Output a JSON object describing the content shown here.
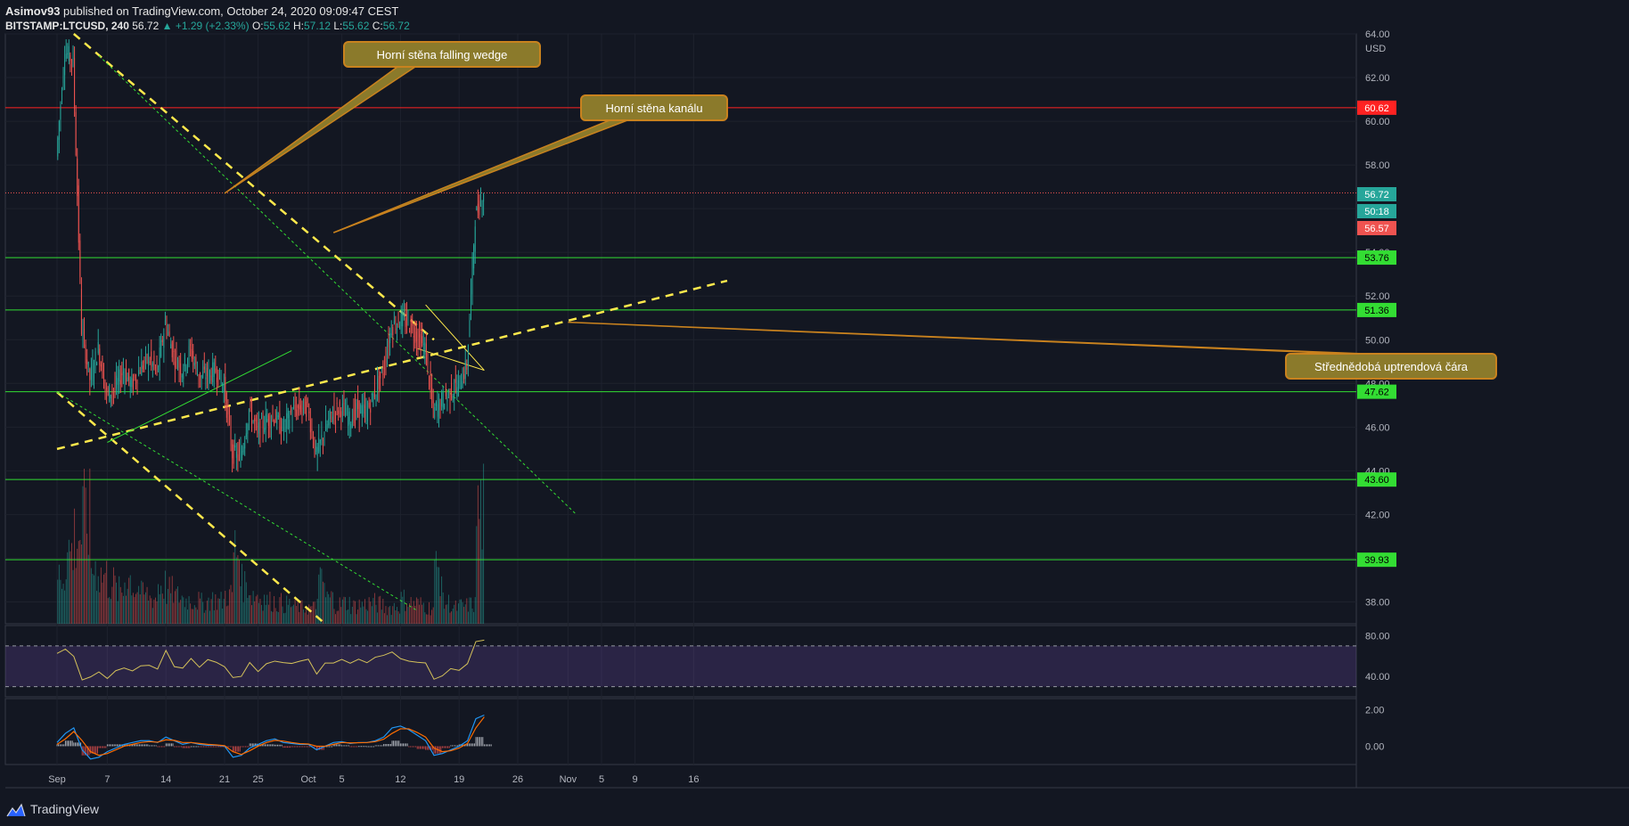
{
  "header": {
    "author": "Asimov93",
    "published": "published on TradingView.com, October 24, 2020 09:09:47 CEST",
    "symbol": "BITSTAMP:LTCUSD, 240",
    "last": "56.72",
    "change": "+1.29 (+2.33%)",
    "o_label": "O:",
    "o_value": "55.62",
    "h_label": "H:",
    "h_value": "57.12",
    "l_label": "L:",
    "l_value": "55.62",
    "c_label": "C:",
    "c_value": "56.72"
  },
  "footer": {
    "brand": "TradingView"
  },
  "colors": {
    "background": "#131722",
    "bull": "#26a69a",
    "bear": "#ef5350",
    "support": "#33dd33",
    "resistance": "#ff2222",
    "trendline": "#ffe94c",
    "rsi": "#d4c15a",
    "macd": "#2196f3",
    "signal": "#ff6d00",
    "annotation_fill": "#8b7a2b",
    "annotation_border": "#c9821e"
  },
  "chart_data": {
    "type": "candlestick",
    "symbol": "BITSTAMP:LTCUSD",
    "currency": "USD",
    "ylim": [
      37,
      64
    ],
    "y_ticks": [
      "64.00",
      "62.00",
      "60.00",
      "58.00",
      "56.00",
      "54.00",
      "52.00",
      "50.00",
      "48.00",
      "46.00",
      "44.00",
      "42.00",
      "40.00",
      "38.00"
    ],
    "x_ticks": [
      {
        "label": "Sep",
        "day": 1
      },
      {
        "label": "7",
        "day": 7
      },
      {
        "label": "14",
        "day": 14
      },
      {
        "label": "21",
        "day": 21
      },
      {
        "label": "25",
        "day": 25
      },
      {
        "label": "Oct",
        "day": 31
      },
      {
        "label": "5",
        "day": 35
      },
      {
        "label": "12",
        "day": 42
      },
      {
        "label": "19",
        "day": 49
      },
      {
        "label": "26",
        "day": 56
      },
      {
        "label": "Nov",
        "day": 62
      },
      {
        "label": "5",
        "day": 66
      },
      {
        "label": "9",
        "day": 70
      },
      {
        "label": "16",
        "day": 77
      }
    ],
    "price_series": [
      [
        0,
        58.4
      ],
      [
        1,
        63.2
      ],
      [
        2,
        62.8
      ],
      [
        3,
        50.5
      ],
      [
        4,
        48.2
      ],
      [
        5,
        49.6
      ],
      [
        6,
        47.5
      ],
      [
        7,
        47.8
      ],
      [
        8,
        48.6
      ],
      [
        9,
        47.9
      ],
      [
        10,
        48.7
      ],
      [
        11,
        49.2
      ],
      [
        12,
        48.5
      ],
      [
        13,
        50.8
      ],
      [
        14,
        49.3
      ],
      [
        15,
        48.6
      ],
      [
        16,
        49.6
      ],
      [
        17,
        48.3
      ],
      [
        18,
        48.4
      ],
      [
        19,
        48.6
      ],
      [
        20,
        47.9
      ],
      [
        21,
        44.8
      ],
      [
        22,
        44.6
      ],
      [
        23,
        46.8
      ],
      [
        24,
        45.8
      ],
      [
        25,
        46.3
      ],
      [
        26,
        46.5
      ],
      [
        27,
        45.9
      ],
      [
        28,
        46.6
      ],
      [
        29,
        46.9
      ],
      [
        30,
        46.9
      ],
      [
        31,
        44.7
      ],
      [
        32,
        45.8
      ],
      [
        33,
        46.7
      ],
      [
        34,
        46.9
      ],
      [
        35,
        46.3
      ],
      [
        36,
        46.9
      ],
      [
        37,
        46.6
      ],
      [
        38,
        47.6
      ],
      [
        39,
        48.6
      ],
      [
        40,
        50.6
      ],
      [
        41,
        50.9
      ],
      [
        42,
        50.8
      ],
      [
        43,
        50.2
      ],
      [
        44,
        49.6
      ],
      [
        45,
        46.7
      ],
      [
        46,
        47.2
      ],
      [
        47,
        47.6
      ],
      [
        48,
        47.9
      ],
      [
        49,
        48.8
      ],
      [
        50,
        55.6
      ],
      [
        51,
        56.72
      ]
    ],
    "volume_series": [
      [
        0,
        3.0
      ],
      [
        1,
        4.5
      ],
      [
        2,
        5.5
      ],
      [
        3,
        6.5
      ],
      [
        4,
        3.5
      ],
      [
        5,
        3.0
      ],
      [
        6,
        2.5
      ],
      [
        7,
        2.0
      ],
      [
        8,
        2.8
      ],
      [
        9,
        2.2
      ],
      [
        10,
        1.8
      ],
      [
        11,
        1.6
      ],
      [
        12,
        2.4
      ],
      [
        13,
        2.0
      ],
      [
        14,
        1.7
      ],
      [
        15,
        1.5
      ],
      [
        16,
        1.4
      ],
      [
        17,
        1.3
      ],
      [
        18,
        1.5
      ],
      [
        19,
        1.4
      ],
      [
        20,
        1.8
      ],
      [
        21,
        4.5
      ],
      [
        22,
        2.5
      ],
      [
        23,
        1.8
      ],
      [
        24,
        1.6
      ],
      [
        25,
        1.4
      ],
      [
        26,
        1.3
      ],
      [
        27,
        1.2
      ],
      [
        28,
        1.1
      ],
      [
        29,
        1.0
      ],
      [
        30,
        1.0
      ],
      [
        31,
        2.5
      ],
      [
        32,
        1.6
      ],
      [
        33,
        1.2
      ],
      [
        34,
        1.3
      ],
      [
        35,
        1.1
      ],
      [
        36,
        1.2
      ],
      [
        37,
        1.3
      ],
      [
        38,
        1.2
      ],
      [
        39,
        1.0
      ],
      [
        40,
        1.1
      ],
      [
        41,
        1.5
      ],
      [
        42,
        1.3
      ],
      [
        43,
        1.2
      ],
      [
        44,
        1.0
      ],
      [
        45,
        3.3
      ],
      [
        46,
        1.3
      ],
      [
        47,
        1.0
      ],
      [
        48,
        1.1
      ],
      [
        49,
        1.2
      ],
      [
        50,
        7.0
      ],
      [
        51,
        2.5
      ]
    ],
    "horizontal_levels": [
      {
        "value": 60.62,
        "label": "60.62",
        "kind": "resistance"
      },
      {
        "value": 53.76,
        "label": "53.76",
        "kind": "support"
      },
      {
        "value": 51.36,
        "label": "51.36",
        "kind": "support"
      },
      {
        "value": 47.62,
        "label": "47.62",
        "kind": "support"
      },
      {
        "value": 43.6,
        "label": "43.60",
        "kind": "support"
      },
      {
        "value": 39.93,
        "label": "39.93",
        "kind": "support"
      }
    ],
    "price_tags": [
      {
        "value": 56.72,
        "label": "56.72",
        "kind": "last"
      },
      {
        "value": 56.2,
        "label": "50:18",
        "kind": "countdown"
      },
      {
        "value": 55.4,
        "label": "56.57",
        "kind": "bear"
      }
    ],
    "trendlines": [
      {
        "from": [
          2,
          64.0
        ],
        "to": [
          45,
          50.0
        ],
        "style": "dashed",
        "color": "trendline"
      },
      {
        "from": [
          0,
          47.6
        ],
        "to": [
          32,
          37.0
        ],
        "style": "dashed",
        "color": "trendline"
      },
      {
        "from": [
          0,
          45.0
        ],
        "to": [
          80,
          52.7
        ],
        "style": "dashed",
        "color": "trendline"
      },
      {
        "from": [
          5,
          63.0
        ],
        "to": [
          62,
          42.0
        ],
        "style": "dotted",
        "color": "support"
      },
      {
        "from": [
          0,
          47.6
        ],
        "to": [
          43,
          37.6
        ],
        "style": "dotted",
        "color": "support"
      },
      {
        "from": [
          6,
          45.3
        ],
        "to": [
          28,
          49.5
        ],
        "style": "solid",
        "color": "support"
      },
      {
        "from": [
          44,
          51.6
        ],
        "to": [
          51,
          48.6
        ],
        "style": "solid",
        "color": "trendline"
      },
      {
        "from": [
          43,
          49.6
        ],
        "to": [
          51,
          48.6
        ],
        "style": "solid",
        "color": "trendline"
      }
    ],
    "annotations": [
      {
        "text": "Horní stěna falling wedge",
        "day": 20,
        "price": 56.7
      },
      {
        "text": "Horní stěna kanálu",
        "day": 33,
        "price": 54.9
      },
      {
        "text": "Střednědobá uptrendová čára",
        "day": 61,
        "price": 50.8
      }
    ],
    "rsi": {
      "ticks": [
        "80.00",
        "40.00"
      ],
      "ylim": [
        20,
        90
      ],
      "band": [
        70,
        30
      ],
      "series": [
        [
          0,
          60
        ],
        [
          1,
          65
        ],
        [
          2,
          58
        ],
        [
          3,
          38
        ],
        [
          4,
          42
        ],
        [
          5,
          45
        ],
        [
          6,
          40
        ],
        [
          7,
          46
        ],
        [
          8,
          50
        ],
        [
          9,
          48
        ],
        [
          10,
          52
        ],
        [
          11,
          50
        ],
        [
          12,
          48
        ],
        [
          13,
          63
        ],
        [
          14,
          52
        ],
        [
          15,
          48
        ],
        [
          16,
          55
        ],
        [
          17,
          52
        ],
        [
          18,
          54
        ],
        [
          19,
          53
        ],
        [
          20,
          48
        ],
        [
          21,
          36
        ],
        [
          22,
          40
        ],
        [
          23,
          52
        ],
        [
          24,
          47
        ],
        [
          25,
          50
        ],
        [
          26,
          55
        ],
        [
          27,
          52
        ],
        [
          28,
          54
        ],
        [
          29,
          56
        ],
        [
          30,
          58
        ],
        [
          31,
          45
        ],
        [
          32,
          52
        ],
        [
          33,
          55
        ],
        [
          34,
          56
        ],
        [
          35,
          50
        ],
        [
          36,
          55
        ],
        [
          37,
          54
        ],
        [
          38,
          58
        ],
        [
          39,
          60
        ],
        [
          40,
          62
        ],
        [
          41,
          60
        ],
        [
          42,
          58
        ],
        [
          43,
          55
        ],
        [
          44,
          52
        ],
        [
          45,
          38
        ],
        [
          46,
          42
        ],
        [
          47,
          45
        ],
        [
          48,
          48
        ],
        [
          49,
          55
        ],
        [
          50,
          76
        ],
        [
          51,
          74
        ]
      ]
    },
    "macd": {
      "ticks": [
        "2.00",
        "0.00"
      ],
      "ylim": [
        -1.0,
        2.6
      ],
      "macd_series": [
        [
          0,
          0.2
        ],
        [
          1,
          0.7
        ],
        [
          2,
          1.0
        ],
        [
          3,
          -0.2
        ],
        [
          4,
          -0.7
        ],
        [
          5,
          -0.6
        ],
        [
          6,
          -0.3
        ],
        [
          7,
          -0.1
        ],
        [
          8,
          0.1
        ],
        [
          9,
          0.2
        ],
        [
          10,
          0.3
        ],
        [
          11,
          0.3
        ],
        [
          12,
          0.2
        ],
        [
          13,
          0.5
        ],
        [
          14,
          0.3
        ],
        [
          15,
          0.1
        ],
        [
          16,
          0.2
        ],
        [
          17,
          0.1
        ],
        [
          18,
          0.05
        ],
        [
          19,
          0.05
        ],
        [
          20,
          0.0
        ],
        [
          21,
          -0.6
        ],
        [
          22,
          -0.5
        ],
        [
          23,
          -0.1
        ],
        [
          24,
          0.1
        ],
        [
          25,
          0.3
        ],
        [
          26,
          0.4
        ],
        [
          27,
          0.2
        ],
        [
          28,
          0.15
        ],
        [
          29,
          0.1
        ],
        [
          30,
          0.1
        ],
        [
          31,
          -0.2
        ],
        [
          32,
          0.0
        ],
        [
          33,
          0.2
        ],
        [
          34,
          0.25
        ],
        [
          35,
          0.15
        ],
        [
          36,
          0.2
        ],
        [
          37,
          0.2
        ],
        [
          38,
          0.3
        ],
        [
          39,
          0.5
        ],
        [
          40,
          1.0
        ],
        [
          41,
          1.1
        ],
        [
          42,
          0.9
        ],
        [
          43,
          0.6
        ],
        [
          44,
          0.3
        ],
        [
          45,
          -0.5
        ],
        [
          46,
          -0.4
        ],
        [
          47,
          -0.2
        ],
        [
          48,
          0.0
        ],
        [
          49,
          0.3
        ],
        [
          50,
          1.5
        ],
        [
          51,
          1.7
        ]
      ],
      "signal_series": [
        [
          0,
          0.1
        ],
        [
          1,
          0.4
        ],
        [
          2,
          0.8
        ],
        [
          3,
          0.3
        ],
        [
          4,
          -0.3
        ],
        [
          5,
          -0.5
        ],
        [
          6,
          -0.4
        ],
        [
          7,
          -0.2
        ],
        [
          8,
          0.0
        ],
        [
          9,
          0.1
        ],
        [
          10,
          0.2
        ],
        [
          11,
          0.25
        ],
        [
          12,
          0.22
        ],
        [
          13,
          0.35
        ],
        [
          14,
          0.32
        ],
        [
          15,
          0.2
        ],
        [
          16,
          0.2
        ],
        [
          17,
          0.15
        ],
        [
          18,
          0.1
        ],
        [
          19,
          0.07
        ],
        [
          20,
          0.03
        ],
        [
          21,
          -0.3
        ],
        [
          22,
          -0.45
        ],
        [
          23,
          -0.25
        ],
        [
          24,
          0.0
        ],
        [
          25,
          0.2
        ],
        [
          26,
          0.32
        ],
        [
          27,
          0.28
        ],
        [
          28,
          0.2
        ],
        [
          29,
          0.14
        ],
        [
          30,
          0.12
        ],
        [
          31,
          0.0
        ],
        [
          32,
          0.0
        ],
        [
          33,
          0.1
        ],
        [
          34,
          0.2
        ],
        [
          35,
          0.18
        ],
        [
          36,
          0.19
        ],
        [
          37,
          0.2
        ],
        [
          38,
          0.25
        ],
        [
          39,
          0.38
        ],
        [
          40,
          0.7
        ],
        [
          41,
          0.95
        ],
        [
          42,
          0.95
        ],
        [
          43,
          0.75
        ],
        [
          44,
          0.5
        ],
        [
          45,
          -0.1
        ],
        [
          46,
          -0.3
        ],
        [
          47,
          -0.25
        ],
        [
          48,
          -0.1
        ],
        [
          49,
          0.15
        ],
        [
          50,
          1.0
        ],
        [
          51,
          1.6
        ]
      ]
    }
  }
}
